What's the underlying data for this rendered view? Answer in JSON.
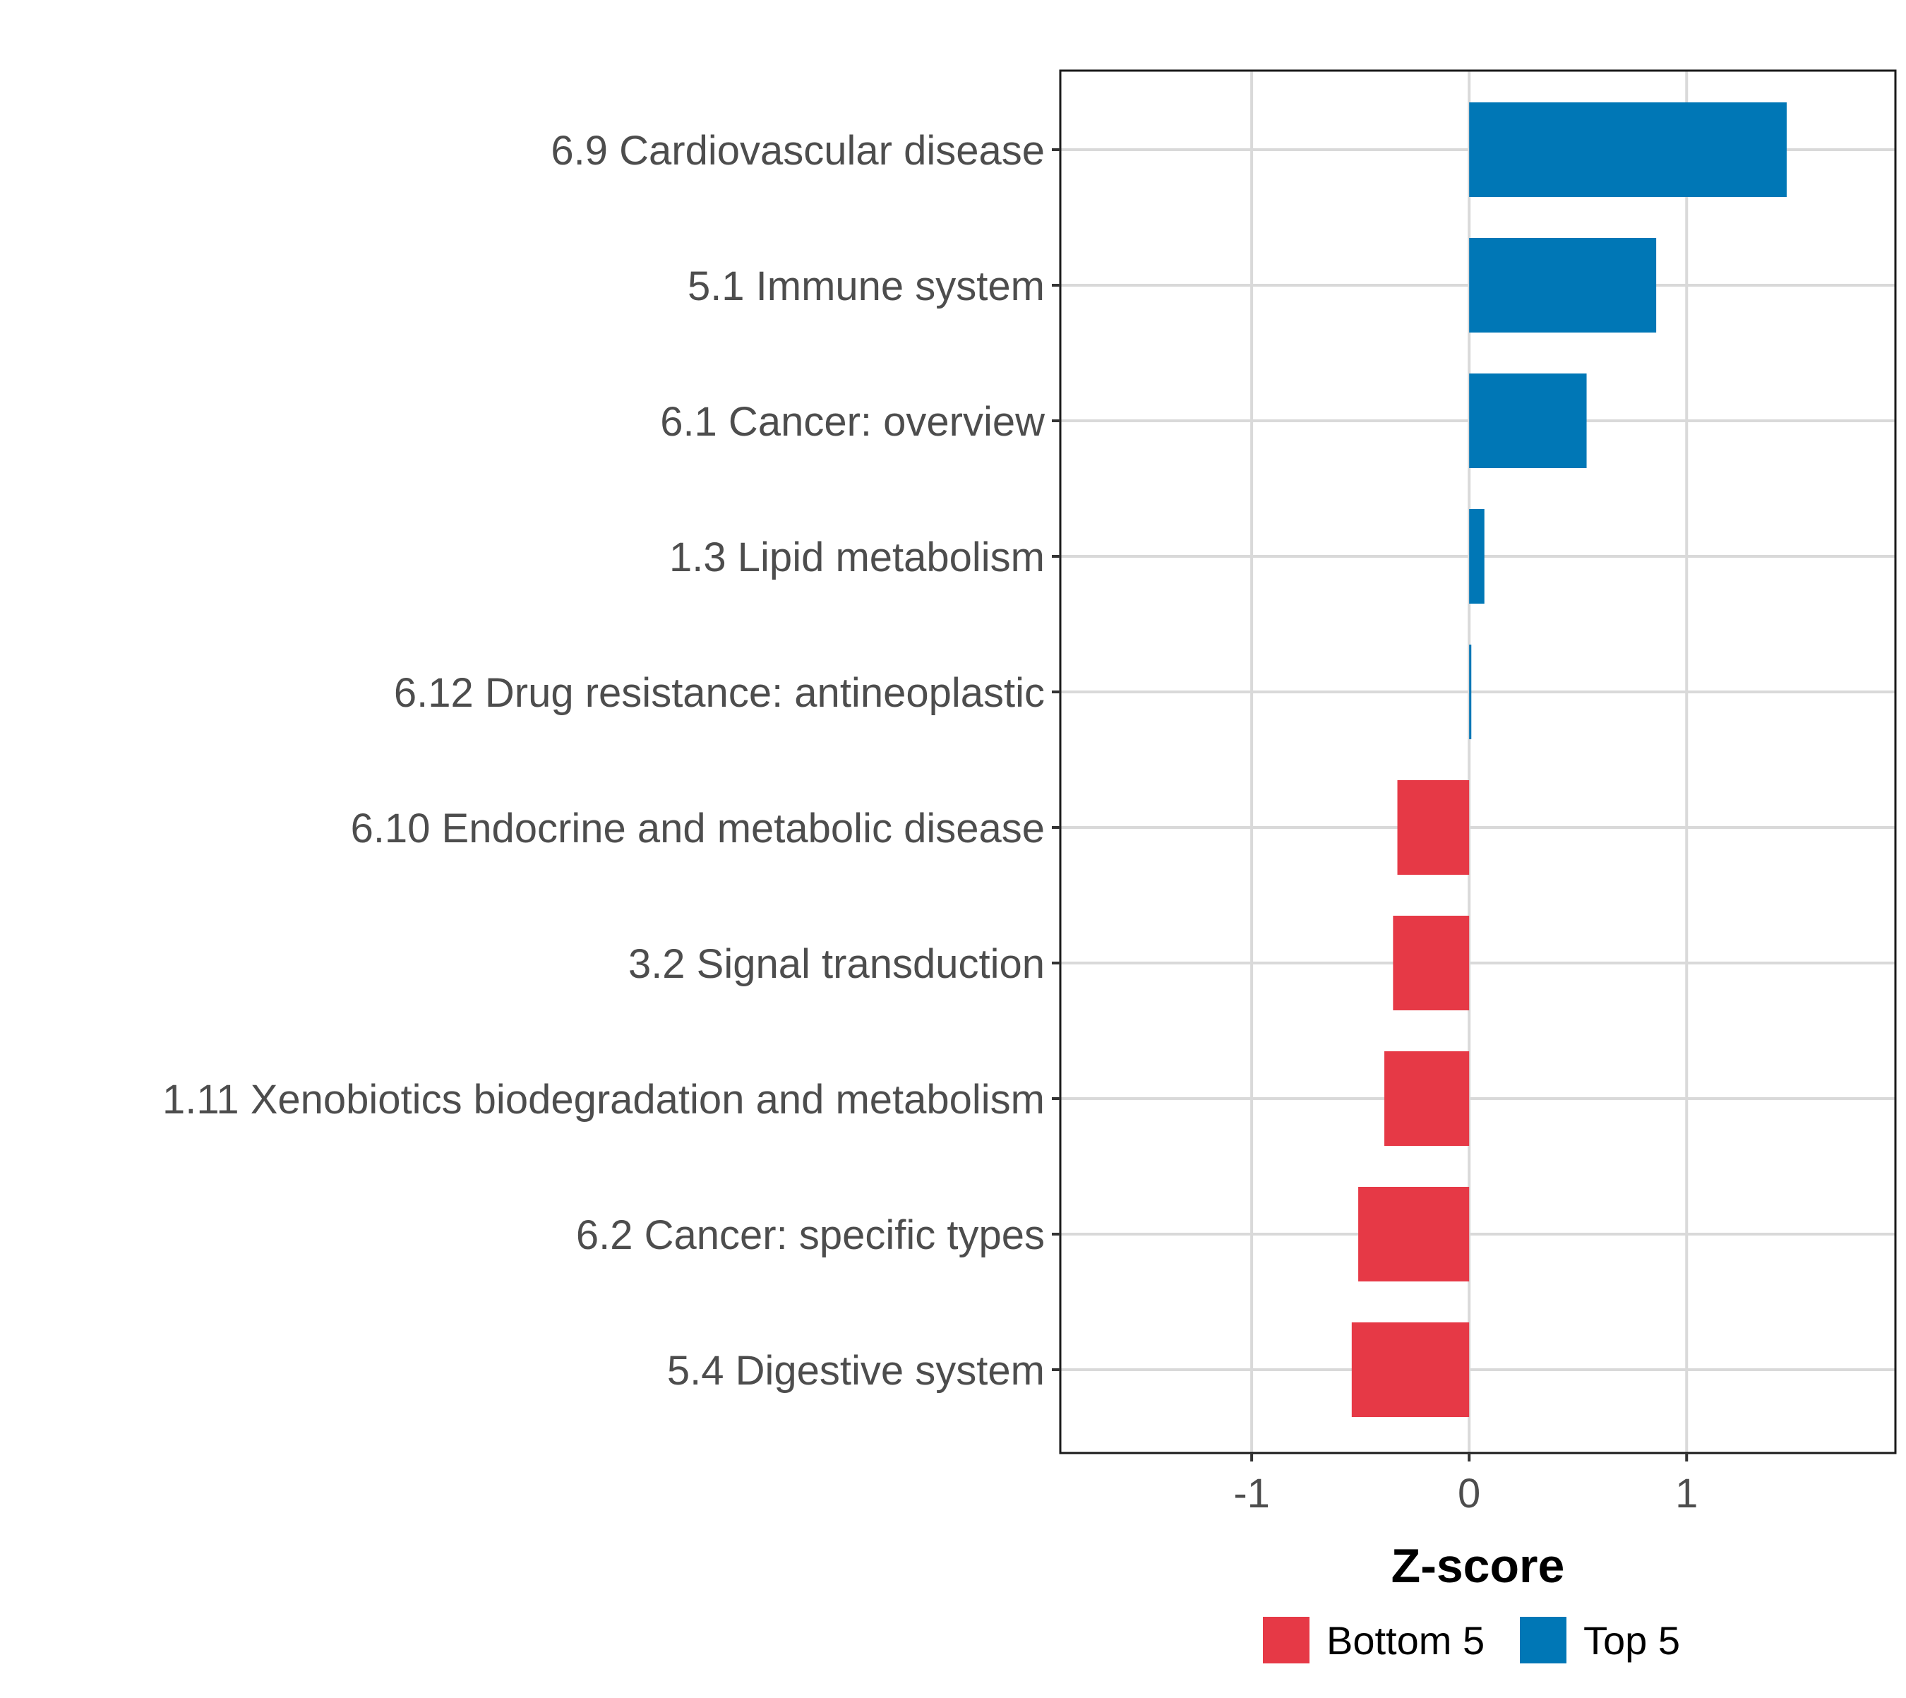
{
  "chart_data": {
    "type": "bar",
    "orientation": "horizontal",
    "title": "",
    "xlabel": "Z-score",
    "ylabel": "",
    "xlim": [
      -1.88,
      1.96
    ],
    "xticks": [
      -1,
      0,
      1
    ],
    "xtick_labels": [
      "-1",
      "0",
      "1"
    ],
    "grid": true,
    "categories": [
      "6.9 Cardiovascular disease",
      "5.1 Immune system",
      "6.1 Cancer: overview",
      "1.3 Lipid metabolism",
      "6.12 Drug resistance: antineoplastic",
      "6.10 Endocrine and metabolic disease",
      "3.2 Signal transduction",
      "1.11 Xenobiotics biodegradation and metabolism",
      "6.2 Cancer: specific types",
      "5.4 Digestive system"
    ],
    "values": [
      1.46,
      0.86,
      0.54,
      0.07,
      0.01,
      -0.33,
      -0.35,
      -0.39,
      -0.51,
      -0.54
    ],
    "groups": [
      "Top 5",
      "Top 5",
      "Top 5",
      "Top 5",
      "Top 5",
      "Bottom 5",
      "Bottom 5",
      "Bottom 5",
      "Bottom 5",
      "Bottom 5"
    ],
    "legend": {
      "position": "bottom",
      "entries": [
        {
          "name": "Bottom 5",
          "color": "#e63946"
        },
        {
          "name": "Top 5",
          "color": "#0077b6"
        }
      ]
    }
  }
}
